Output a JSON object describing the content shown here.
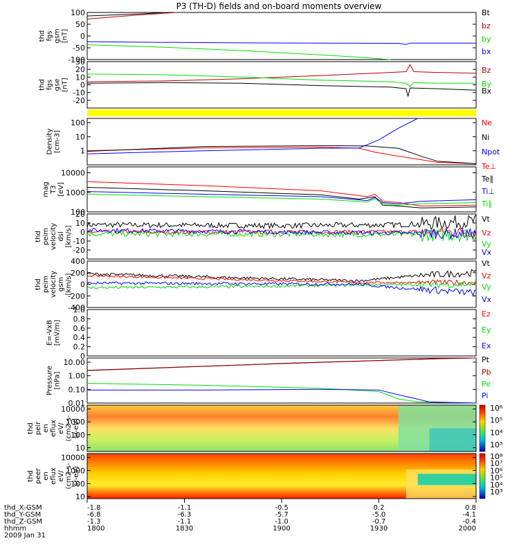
{
  "title": "P3 (TH-D) fields and on-board moments overview",
  "date_label": "2009 Jan 31",
  "colors": {
    "black": "#000000",
    "red": "#ff0000",
    "green": "#00dd00",
    "blue": "#0000ff",
    "darkred": "#b00000",
    "yellow": "#ffff00"
  },
  "chart_data": [
    {
      "type": "line",
      "id": "fgs_gsm",
      "ylabel": [
        "thd",
        "fgs",
        "gsm",
        "[nT]"
      ],
      "ylim": [
        -100,
        100
      ],
      "ticks": [
        100,
        50,
        0,
        -50,
        -100
      ],
      "tick_labels": [
        "100",
        "50",
        "0",
        "-50",
        "-100"
      ],
      "series": [
        {
          "name": "Bt",
          "color": "#000000",
          "points": [
            [
              0,
              85
            ],
            [
              0.15,
              95
            ],
            [
              0.2,
              100
            ]
          ]
        },
        {
          "name": "bz",
          "color": "#b00000",
          "points": [
            [
              0,
              72
            ],
            [
              0.12,
              88
            ],
            [
              0.23,
              100
            ]
          ]
        },
        {
          "name": "by",
          "color": "#00dd00",
          "points": [
            [
              0,
              -37
            ],
            [
              0.2,
              -48
            ],
            [
              0.4,
              -62
            ],
            [
              0.6,
              -80
            ],
            [
              0.7,
              -90
            ],
            [
              0.78,
              -100
            ]
          ]
        },
        {
          "name": "bx",
          "color": "#0000ff",
          "points": [
            [
              0,
              -24
            ],
            [
              0.2,
              -27
            ],
            [
              0.4,
              -29
            ],
            [
              0.6,
              -30
            ],
            [
              0.8,
              -31
            ],
            [
              0.82,
              -36
            ],
            [
              0.83,
              -30
            ],
            [
              1,
              -30
            ]
          ]
        }
      ]
    },
    {
      "type": "line",
      "id": "fgs_dsl",
      "ylabel": [
        "thd",
        "fgs",
        "gse",
        "[nT]"
      ],
      "ylim": [
        -30,
        30
      ],
      "ticks": [
        30,
        20,
        10,
        0,
        -10,
        -20
      ],
      "tick_labels": [
        "30",
        "20",
        "10",
        "0",
        "-10",
        "-20"
      ],
      "series": [
        {
          "name": "Bz",
          "color": "#b00000",
          "points": [
            [
              0,
              4
            ],
            [
              0.2,
              5
            ],
            [
              0.4,
              8
            ],
            [
              0.6,
              12
            ],
            [
              0.78,
              16
            ],
            [
              0.82,
              17
            ],
            [
              0.83,
              26
            ],
            [
              0.84,
              17
            ],
            [
              0.9,
              16
            ],
            [
              1,
              15
            ]
          ]
        },
        {
          "name": "By",
          "color": "#00dd00",
          "points": [
            [
              0,
              14
            ],
            [
              0.2,
              13
            ],
            [
              0.4,
              10
            ],
            [
              0.6,
              6
            ],
            [
              0.78,
              4
            ],
            [
              0.82,
              2
            ],
            [
              0.83,
              -2
            ],
            [
              0.84,
              3
            ],
            [
              0.9,
              2
            ],
            [
              1,
              2
            ]
          ]
        },
        {
          "name": "Bx",
          "color": "#000000",
          "points": [
            [
              0,
              2
            ],
            [
              0.2,
              3
            ],
            [
              0.4,
              2
            ],
            [
              0.6,
              -1
            ],
            [
              0.78,
              -3
            ],
            [
              0.82,
              -5
            ],
            [
              0.825,
              -15
            ],
            [
              0.83,
              -4
            ],
            [
              0.9,
              -5
            ],
            [
              1,
              -7
            ]
          ]
        }
      ]
    },
    {
      "type": "bar",
      "id": "flag",
      "note": "yellow status bar",
      "color": "#ffff00"
    },
    {
      "type": "line",
      "id": "density",
      "yscale": "log",
      "ylabel": [
        "Density",
        "[cm-3]"
      ],
      "ylim": [
        0.1,
        200
      ],
      "ticks": [
        100,
        10,
        1
      ],
      "tick_labels": [
        "100",
        "10",
        "1"
      ],
      "series": [
        {
          "name": "Ne",
          "color": "#ff0000",
          "points": [
            [
              0,
              1
            ],
            [
              0.3,
              1.6
            ],
            [
              0.6,
              1.8
            ],
            [
              0.7,
              1.5
            ],
            [
              0.74,
              0.8
            ],
            [
              0.78,
              0.5
            ],
            [
              0.85,
              0.25
            ],
            [
              0.9,
              0.15
            ],
            [
              1,
              0.12
            ]
          ]
        },
        {
          "name": "Ni",
          "color": "#000000",
          "points": [
            [
              0,
              0.9
            ],
            [
              0.3,
              2
            ],
            [
              0.6,
              2.3
            ],
            [
              0.72,
              2.2
            ],
            [
              0.8,
              1.5
            ],
            [
              0.86,
              0.4
            ],
            [
              0.9,
              0.18
            ],
            [
              1,
              0.12
            ]
          ]
        },
        {
          "name": "Npot",
          "color": "#0000ff",
          "points": [
            [
              0,
              0.6
            ],
            [
              0.3,
              1
            ],
            [
              0.6,
              1.5
            ],
            [
              0.7,
              1.6
            ],
            [
              0.75,
              6
            ],
            [
              0.8,
              40
            ],
            [
              0.85,
              200
            ]
          ]
        }
      ]
    },
    {
      "type": "line",
      "id": "temps",
      "yscale": "log",
      "ylabel": [
        "mag",
        "T3",
        "[eV]"
      ],
      "ylim": [
        100,
        20000
      ],
      "ticks": [
        10000,
        1000,
        100
      ],
      "tick_labels": [
        "10000",
        "1000",
        "100"
      ],
      "series": [
        {
          "name": "Te⊥",
          "color": "#ff0000",
          "points": [
            [
              0,
              3500
            ],
            [
              0.3,
              2200
            ],
            [
              0.6,
              1200
            ],
            [
              0.72,
              600
            ],
            [
              0.74,
              800
            ],
            [
              0.76,
              350
            ],
            [
              0.8,
              300
            ],
            [
              0.86,
              200
            ],
            [
              1,
              220
            ]
          ]
        },
        {
          "name": "Te∥",
          "color": "#000000",
          "points": [
            [
              0,
              1800
            ],
            [
              0.3,
              1200
            ],
            [
              0.6,
              750
            ],
            [
              0.7,
              450
            ],
            [
              0.74,
              600
            ],
            [
              0.76,
              220
            ],
            [
              0.8,
              200
            ],
            [
              0.86,
              160
            ],
            [
              1,
              180
            ]
          ]
        },
        {
          "name": "Ti⊥",
          "color": "#0000ff",
          "points": [
            [
              0,
              1100
            ],
            [
              0.3,
              800
            ],
            [
              0.6,
              600
            ],
            [
              0.72,
              380
            ],
            [
              0.74,
              550
            ],
            [
              0.76,
              300
            ],
            [
              0.8,
              260
            ],
            [
              0.86,
              350
            ],
            [
              1,
              420
            ]
          ]
        },
        {
          "name": "Ti∥",
          "color": "#00dd00",
          "points": [
            [
              0,
              800
            ],
            [
              0.3,
              600
            ],
            [
              0.6,
              450
            ],
            [
              0.72,
              320
            ],
            [
              0.74,
              480
            ],
            [
              0.76,
              260
            ],
            [
              0.8,
              220
            ],
            [
              0.86,
              260
            ],
            [
              1,
              300
            ]
          ]
        }
      ]
    },
    {
      "type": "line",
      "id": "peim_dsl",
      "noisy": true,
      "ylabel": [
        "thd",
        "peim",
        "velocity",
        "dsl",
        "[km/s]"
      ],
      "ylim": [
        -30,
        20
      ],
      "ticks": [
        20,
        10,
        0,
        -10,
        -20
      ],
      "tick_labels": [
        "20",
        "10",
        "0",
        "-10",
        "-20"
      ],
      "series": [
        {
          "name": "Vt",
          "color": "#000000",
          "points": [
            [
              0,
              8
            ],
            [
              0.5,
              7
            ],
            [
              0.8,
              8
            ],
            [
              1,
              12
            ]
          ],
          "noise": 5
        },
        {
          "name": "Vz",
          "color": "#ff0000",
          "points": [
            [
              0,
              0
            ],
            [
              1,
              0
            ]
          ],
          "noise": 4
        },
        {
          "name": "Vy",
          "color": "#00dd00",
          "points": [
            [
              0,
              -2
            ],
            [
              1,
              -3
            ]
          ],
          "noise": 5
        },
        {
          "name": "Vx",
          "color": "#0000ff",
          "points": [
            [
              0,
              2
            ],
            [
              1,
              -2
            ]
          ],
          "noise": 4
        }
      ]
    },
    {
      "type": "line",
      "id": "peim_gsm",
      "noisy": true,
      "ylabel": [
        "thd",
        "peim",
        "velocity",
        "gsm",
        "[km/s]"
      ],
      "ylim": [
        -400,
        400
      ],
      "ticks": [
        400,
        200,
        0,
        -200,
        -400
      ],
      "tick_labels": [
        "400",
        "200",
        "0",
        "-200",
        "-400"
      ],
      "series": [
        {
          "name": "Vt",
          "color": "#000000",
          "points": [
            [
              0,
              180
            ],
            [
              0.4,
              110
            ],
            [
              0.7,
              60
            ],
            [
              0.75,
              90
            ],
            [
              0.85,
              150
            ],
            [
              1,
              200
            ]
          ],
          "noise": 40
        },
        {
          "name": "Vz",
          "color": "#ff0000",
          "points": [
            [
              0,
              150
            ],
            [
              0.4,
              80
            ],
            [
              0.7,
              30
            ],
            [
              1,
              30
            ]
          ],
          "noise": 30
        },
        {
          "name": "Vy",
          "color": "#00dd00",
          "points": [
            [
              0,
              -60
            ],
            [
              0.4,
              -40
            ],
            [
              0.7,
              -10
            ],
            [
              1,
              0
            ]
          ],
          "noise": 40
        },
        {
          "name": "Vx",
          "color": "#0000ff",
          "points": [
            [
              0,
              20
            ],
            [
              0.4,
              10
            ],
            [
              0.7,
              0
            ],
            [
              0.8,
              -60
            ],
            [
              1,
              -150
            ]
          ],
          "noise": 40
        }
      ]
    },
    {
      "type": "line",
      "id": "exb",
      "ylabel": [
        "E=-VxB",
        "[mV/m]"
      ],
      "ylim": [
        0,
        1
      ],
      "ticks": [
        1.0,
        0.8,
        0.6,
        0.4,
        0.2,
        0
      ],
      "tick_labels": [
        "1.0",
        "0.8",
        "0.6",
        "0.4",
        "0.2",
        "0"
      ],
      "series": [
        {
          "name": "Ez",
          "color": "#ff0000",
          "points": []
        },
        {
          "name": "Ey",
          "color": "#00dd00",
          "points": []
        },
        {
          "name": "Ex",
          "color": "#0000ff",
          "points": []
        }
      ]
    },
    {
      "type": "line",
      "id": "pressure",
      "yscale": "log",
      "ylabel": [
        "Pressure",
        "[nPa]"
      ],
      "ylim": [
        0.01,
        20
      ],
      "ticks": [
        10,
        1,
        0.1,
        0.01
      ],
      "tick_labels": [
        "10.00",
        "1.00",
        "0.10",
        "0.01"
      ],
      "series": [
        {
          "name": "Pt",
          "color": "#000000",
          "points": [
            [
              0,
              2.5
            ],
            [
              0.5,
              8
            ],
            [
              0.9,
              18
            ],
            [
              1,
              20
            ]
          ]
        },
        {
          "name": "Pb",
          "color": "#b00000",
          "points": [
            [
              0,
              2.4
            ],
            [
              0.5,
              7.8
            ],
            [
              0.9,
              17.5
            ],
            [
              1,
              20
            ]
          ]
        },
        {
          "name": "Pe",
          "color": "#00dd00",
          "points": [
            [
              0,
              0.28
            ],
            [
              0.3,
              0.2
            ],
            [
              0.6,
              0.12
            ],
            [
              0.75,
              0.07
            ],
            [
              0.8,
              0.02
            ],
            [
              0.85,
              0.012
            ],
            [
              1,
              0.01
            ]
          ]
        },
        {
          "name": "Pi",
          "color": "#0000ff",
          "points": [
            [
              0,
              0.09
            ],
            [
              0.3,
              0.09
            ],
            [
              0.6,
              0.1
            ],
            [
              0.75,
              0.09
            ],
            [
              0.82,
              0.03
            ],
            [
              0.88,
              0.012
            ],
            [
              1,
              0.01
            ]
          ]
        }
      ]
    },
    {
      "type": "heatmap",
      "id": "peir",
      "yscale": "log",
      "ylabel": [
        "thd",
        "peir",
        "en",
        "eflux",
        "eV/",
        "(cm2-s-",
        "sr-eV)"
      ],
      "ylim": [
        5,
        20000
      ],
      "ticks": [
        10000,
        1000,
        100,
        10
      ],
      "tick_labels": [
        "10000",
        "1000",
        "100",
        "10"
      ],
      "colorbar": {
        "ticks": [
          "10⁶",
          "10⁵",
          "10⁴",
          "10³"
        ]
      }
    },
    {
      "type": "heatmap",
      "id": "peer",
      "yscale": "log",
      "ylabel": [
        "thd",
        "peer",
        "en",
        "eflux",
        "eV/",
        "(cm2-s-",
        "sr-eV)"
      ],
      "ylim": [
        7,
        20000
      ],
      "ticks": [
        10000,
        1000,
        100,
        10
      ],
      "tick_labels": [
        "10000",
        "1000",
        "100",
        "10"
      ],
      "colorbar": {
        "ticks": [
          "10⁸",
          "10⁷",
          "10⁶",
          "10⁵",
          "10⁴",
          "10³"
        ]
      }
    }
  ],
  "x_axis": {
    "rows": [
      {
        "label": "thd_X-GSM",
        "values": [
          "-1.8",
          "-1.1",
          "-0.5",
          "0.2",
          "0.8"
        ]
      },
      {
        "label": "thd_Y-GSM",
        "values": [
          "-6.8",
          "-6.3",
          "-5.7",
          "-5.0",
          "-4.1"
        ]
      },
      {
        "label": "thd_Z-GSM",
        "values": [
          "-1.3",
          "-1.1",
          "-1.0",
          "-0.7",
          "-0.4"
        ]
      },
      {
        "label": "hhmm",
        "values": [
          "1800",
          "1830",
          "1900",
          "1930",
          "2000"
        ]
      }
    ]
  }
}
